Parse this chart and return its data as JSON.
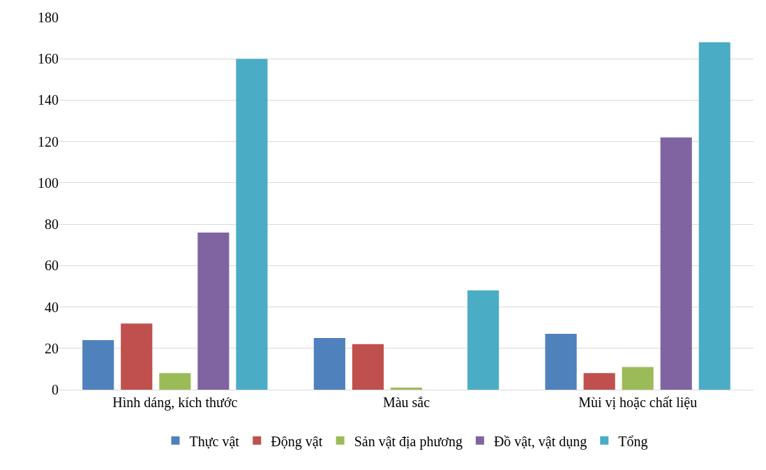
{
  "chart_data": {
    "type": "bar",
    "categories": [
      "Hình dáng, kích thước",
      "Màu sắc",
      "Mùi vị hoặc chất liệu"
    ],
    "series": [
      {
        "name": "Thực vật",
        "color": "#4f81bd",
        "values": [
          24,
          25,
          27
        ]
      },
      {
        "name": "Động vật",
        "color": "#c0504d",
        "values": [
          32,
          22,
          8
        ]
      },
      {
        "name": "Sản vật địa phương",
        "color": "#9bbb59",
        "values": [
          8,
          1,
          11
        ]
      },
      {
        "name": "Đồ vật, vật dụng",
        "color": "#8064a2",
        "values": [
          76,
          0,
          122
        ]
      },
      {
        "name": "Tổng",
        "color": "#4bacc6",
        "values": [
          160,
          48,
          168
        ]
      }
    ],
    "ylim": [
      0,
      180
    ],
    "yticks": [
      0,
      20,
      40,
      60,
      80,
      100,
      120,
      140,
      160,
      180
    ],
    "grid": "y",
    "legend": "bottom"
  }
}
